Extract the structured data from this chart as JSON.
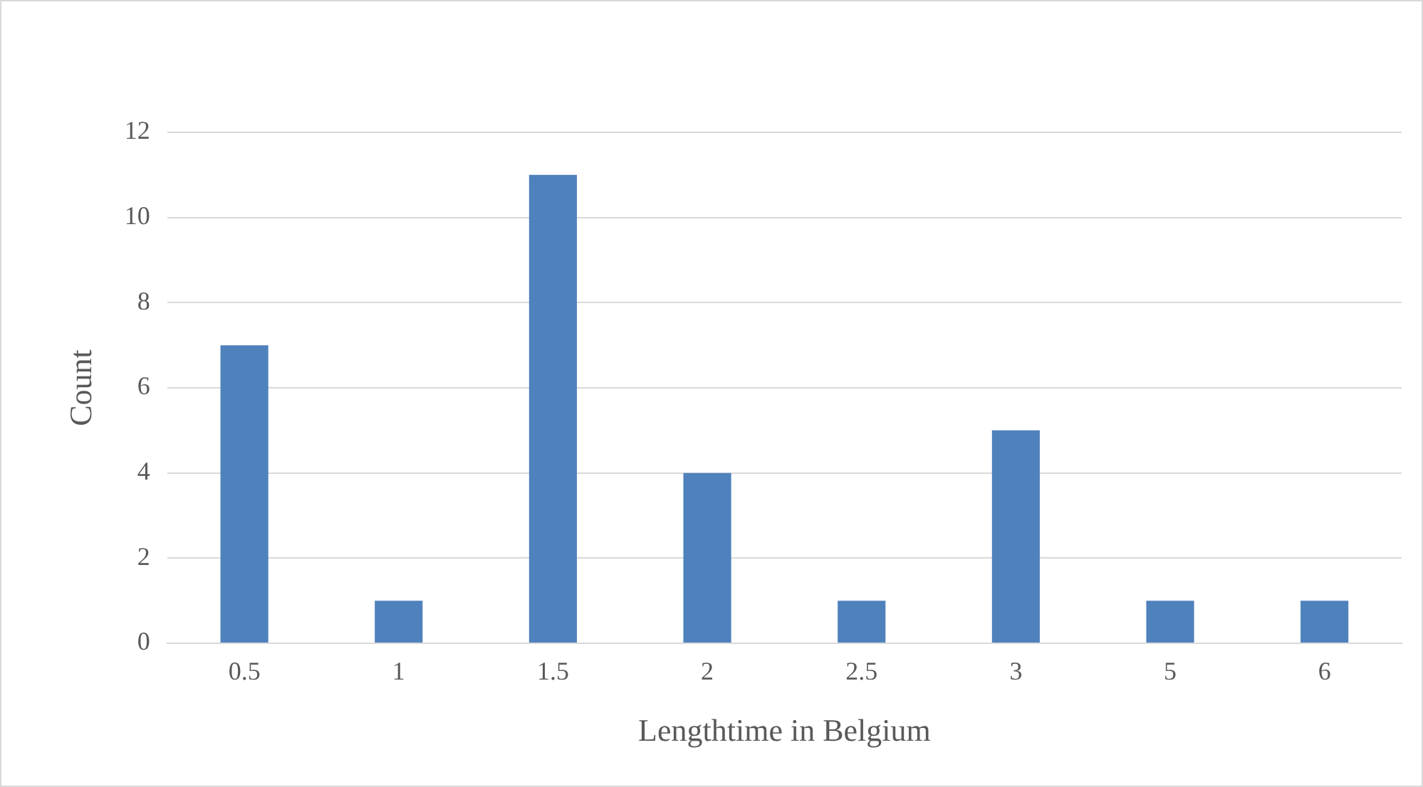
{
  "chart_data": {
    "type": "bar",
    "xlabel": "Lengthtime in Belgium",
    "ylabel": "Count",
    "categories": [
      "0.5",
      "1",
      "1.5",
      "2",
      "2.5",
      "3",
      "5",
      "6"
    ],
    "values": [
      7,
      1,
      11,
      4,
      1,
      5,
      1,
      1
    ],
    "color": "#4f81bd",
    "ylim": [
      0,
      12
    ],
    "yticks": [
      0,
      2,
      4,
      6,
      8,
      10,
      12
    ],
    "grid": "y",
    "legend": false
  }
}
